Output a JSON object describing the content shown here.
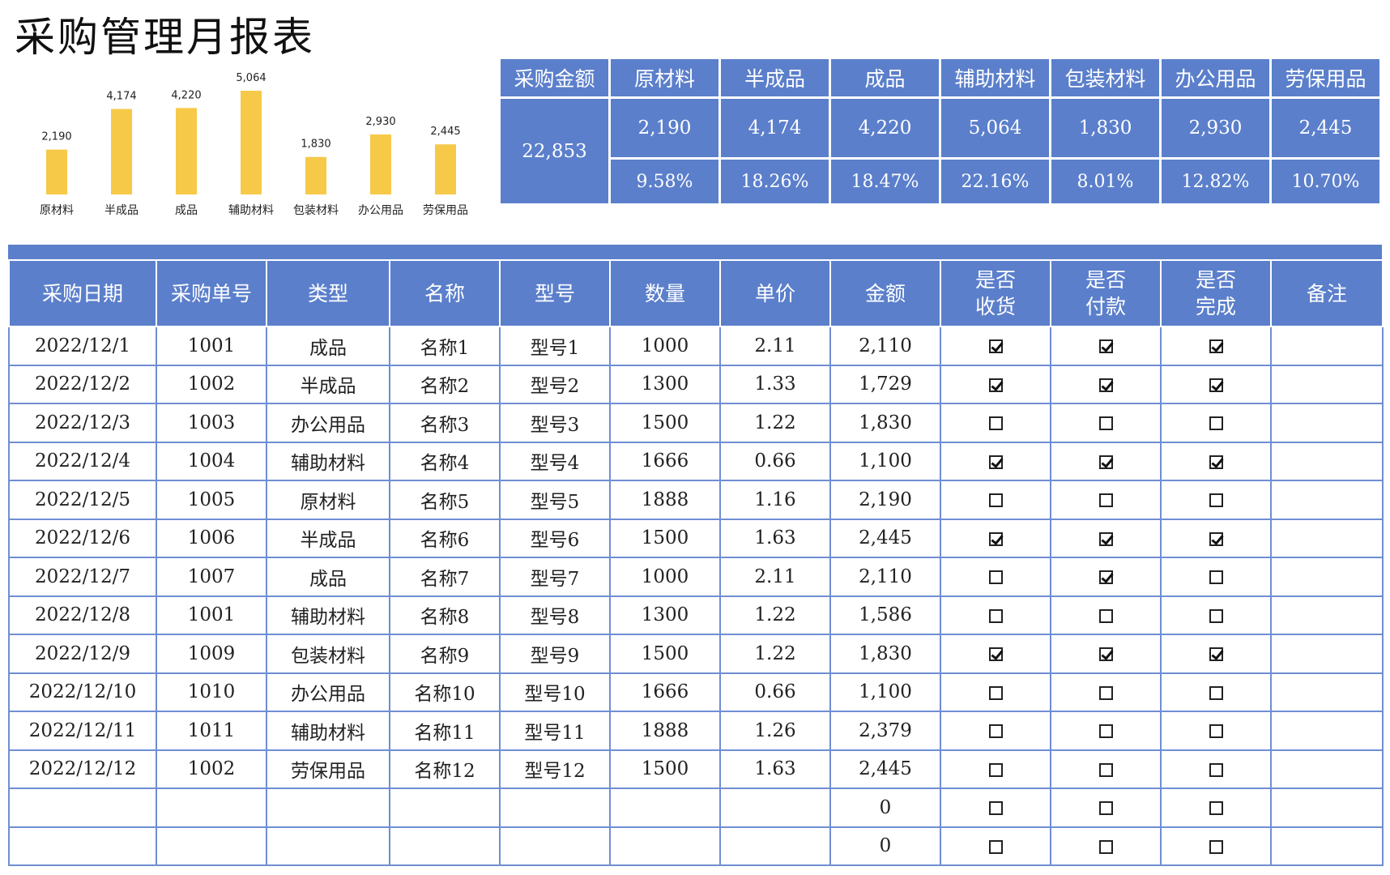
{
  "title": "采购管理月报表",
  "colors": {
    "header_blue": "#5b7fcb",
    "bar_yellow": "#f7c948",
    "grid_blue": "#6f8ed3"
  },
  "chart_data": {
    "type": "bar",
    "categories": [
      "原材料",
      "半成品",
      "成品",
      "辅助材料",
      "包装材料",
      "办公用品",
      "劳保用品"
    ],
    "values": [
      2190,
      4174,
      4220,
      5064,
      1830,
      2930,
      2445
    ],
    "data_labels": [
      "2,190",
      "4,174",
      "4,220",
      "5,064",
      "1,830",
      "2,930",
      "2,445"
    ],
    "ylim": [
      0,
      5064
    ],
    "grid": false,
    "legend": "none"
  },
  "summary": {
    "headers": [
      "采购金额",
      "原材料",
      "半成品",
      "成品",
      "辅助材料",
      "包装材料",
      "办公用品",
      "劳保用品"
    ],
    "total": "22,853",
    "values": [
      "2,190",
      "4,174",
      "4,220",
      "5,064",
      "1,830",
      "2,930",
      "2,445"
    ],
    "percents": [
      "9.58%",
      "18.26%",
      "18.47%",
      "22.16%",
      "8.01%",
      "12.82%",
      "10.70%"
    ]
  },
  "table": {
    "headers": [
      [
        "采购日期"
      ],
      [
        "采购单号"
      ],
      [
        "类型"
      ],
      [
        "名称"
      ],
      [
        "型号"
      ],
      [
        "数量"
      ],
      [
        "单价"
      ],
      [
        "金额"
      ],
      [
        "是否",
        "收货"
      ],
      [
        "是否",
        "付款"
      ],
      [
        "是否",
        "完成"
      ],
      [
        "备注"
      ]
    ],
    "rows": [
      {
        "date": "2022/12/1",
        "no": "1001",
        "type": "成品",
        "name": "名称1",
        "model": "型号1",
        "qty": "1000",
        "price": "2.11",
        "amount": "2,110",
        "received": true,
        "paid": true,
        "done": true,
        "note": ""
      },
      {
        "date": "2022/12/2",
        "no": "1002",
        "type": "半成品",
        "name": "名称2",
        "model": "型号2",
        "qty": "1300",
        "price": "1.33",
        "amount": "1,729",
        "received": true,
        "paid": true,
        "done": true,
        "note": ""
      },
      {
        "date": "2022/12/3",
        "no": "1003",
        "type": "办公用品",
        "name": "名称3",
        "model": "型号3",
        "qty": "1500",
        "price": "1.22",
        "amount": "1,830",
        "received": false,
        "paid": false,
        "done": false,
        "note": ""
      },
      {
        "date": "2022/12/4",
        "no": "1004",
        "type": "辅助材料",
        "name": "名称4",
        "model": "型号4",
        "qty": "1666",
        "price": "0.66",
        "amount": "1,100",
        "received": true,
        "paid": true,
        "done": true,
        "note": ""
      },
      {
        "date": "2022/12/5",
        "no": "1005",
        "type": "原材料",
        "name": "名称5",
        "model": "型号5",
        "qty": "1888",
        "price": "1.16",
        "amount": "2,190",
        "received": false,
        "paid": false,
        "done": false,
        "note": ""
      },
      {
        "date": "2022/12/6",
        "no": "1006",
        "type": "半成品",
        "name": "名称6",
        "model": "型号6",
        "qty": "1500",
        "price": "1.63",
        "amount": "2,445",
        "received": true,
        "paid": true,
        "done": true,
        "note": ""
      },
      {
        "date": "2022/12/7",
        "no": "1007",
        "type": "成品",
        "name": "名称7",
        "model": "型号7",
        "qty": "1000",
        "price": "2.11",
        "amount": "2,110",
        "received": false,
        "paid": true,
        "done": false,
        "note": ""
      },
      {
        "date": "2022/12/8",
        "no": "1001",
        "type": "辅助材料",
        "name": "名称8",
        "model": "型号8",
        "qty": "1300",
        "price": "1.22",
        "amount": "1,586",
        "received": false,
        "paid": false,
        "done": false,
        "note": ""
      },
      {
        "date": "2022/12/9",
        "no": "1009",
        "type": "包装材料",
        "name": "名称9",
        "model": "型号9",
        "qty": "1500",
        "price": "1.22",
        "amount": "1,830",
        "received": true,
        "paid": true,
        "done": true,
        "note": ""
      },
      {
        "date": "2022/12/10",
        "no": "1010",
        "type": "办公用品",
        "name": "名称10",
        "model": "型号10",
        "qty": "1666",
        "price": "0.66",
        "amount": "1,100",
        "received": false,
        "paid": false,
        "done": false,
        "note": ""
      },
      {
        "date": "2022/12/11",
        "no": "1011",
        "type": "辅助材料",
        "name": "名称11",
        "model": "型号11",
        "qty": "1888",
        "price": "1.26",
        "amount": "2,379",
        "received": false,
        "paid": false,
        "done": false,
        "note": ""
      },
      {
        "date": "2022/12/12",
        "no": "1002",
        "type": "劳保用品",
        "name": "名称12",
        "model": "型号12",
        "qty": "1500",
        "price": "1.63",
        "amount": "2,445",
        "received": false,
        "paid": false,
        "done": false,
        "note": ""
      },
      {
        "date": "",
        "no": "",
        "type": "",
        "name": "",
        "model": "",
        "qty": "",
        "price": "",
        "amount": "0",
        "received": false,
        "paid": false,
        "done": false,
        "note": ""
      },
      {
        "date": "",
        "no": "",
        "type": "",
        "name": "",
        "model": "",
        "qty": "",
        "price": "",
        "amount": "0",
        "received": false,
        "paid": false,
        "done": false,
        "note": ""
      }
    ]
  }
}
